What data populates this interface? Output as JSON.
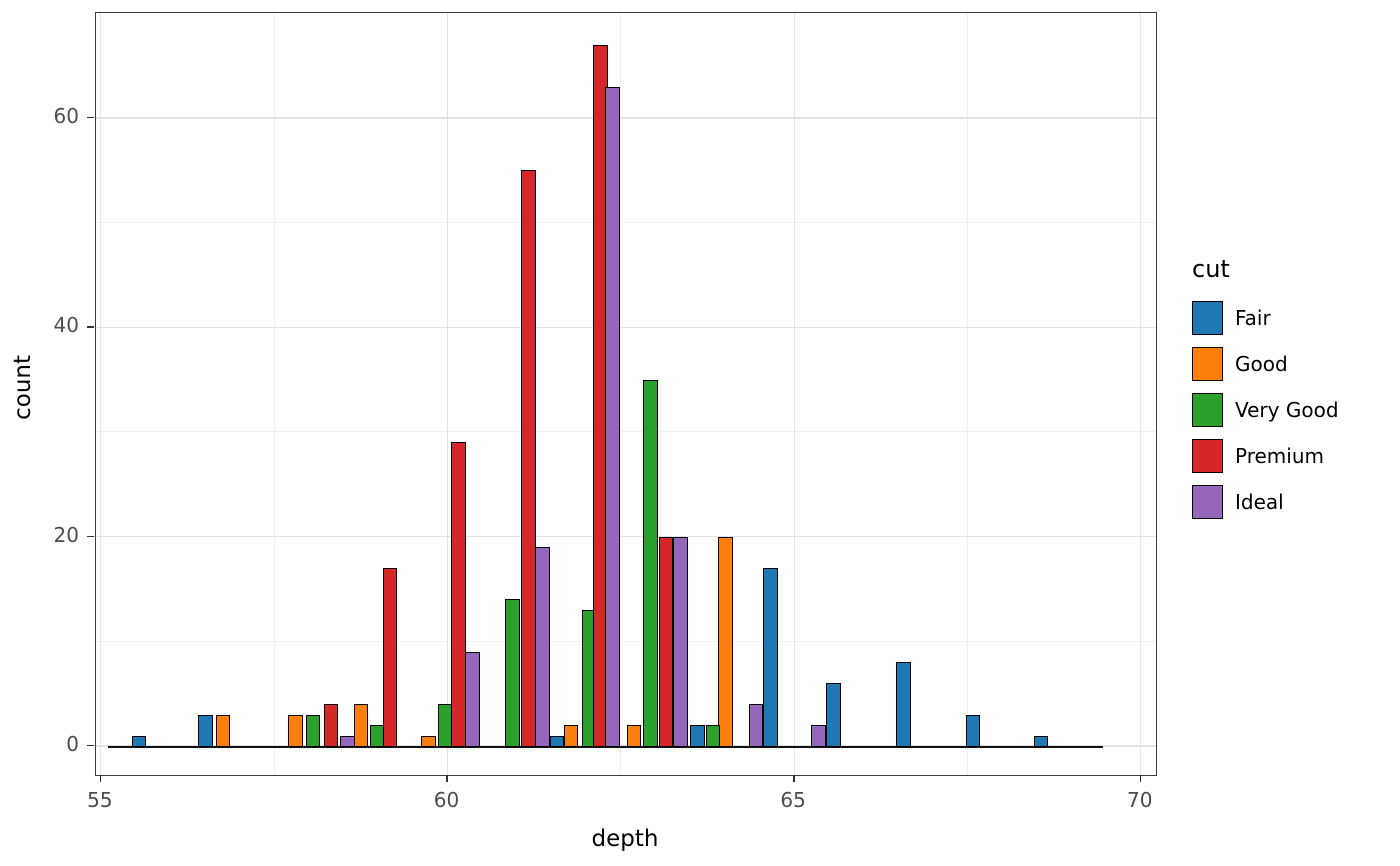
{
  "chart_data": {
    "type": "bar",
    "title": "",
    "xlabel": "depth",
    "ylabel": "count",
    "legend_title": "cut",
    "legend_position": "right",
    "grid": true,
    "xlim": [
      54.93,
      70.22
    ],
    "ylim": [
      0,
      70
    ],
    "x_ticks": [
      55,
      60,
      65,
      70
    ],
    "x_minor_ticks": [
      57.5,
      62.5,
      67.5
    ],
    "y_ticks": [
      0,
      20,
      40,
      60
    ],
    "y_minor_ticks": [
      10,
      30,
      50
    ],
    "bar_width": 0.21,
    "baseline": {
      "from": 55.1,
      "to": 69.45
    },
    "series": [
      {
        "name": "Fair",
        "color": "#1f77b4",
        "bars": [
          [
            55.55,
            1
          ],
          [
            56.51,
            3
          ],
          [
            61.58,
            1
          ],
          [
            63.61,
            2
          ],
          [
            64.66,
            17
          ],
          [
            65.57,
            6
          ],
          [
            66.58,
            8
          ],
          [
            67.58,
            3
          ],
          [
            68.56,
            1
          ]
        ]
      },
      {
        "name": "Good",
        "color": "#ff7f0e",
        "bars": [
          [
            56.76,
            3
          ],
          [
            57.81,
            3
          ],
          [
            58.75,
            4
          ],
          [
            59.73,
            1
          ],
          [
            61.78,
            2
          ],
          [
            62.69,
            2
          ],
          [
            64.01,
            20
          ]
        ]
      },
      {
        "name": "Very Good",
        "color": "#2ca02c",
        "bars": [
          [
            58.06,
            3
          ],
          [
            58.99,
            2
          ],
          [
            59.97,
            4
          ],
          [
            60.94,
            14
          ],
          [
            62.04,
            13
          ],
          [
            62.93,
            35
          ],
          [
            63.83,
            2
          ]
        ]
      },
      {
        "name": "Premium",
        "color": "#d62728",
        "bars": [
          [
            58.32,
            4
          ],
          [
            59.17,
            17
          ],
          [
            60.16,
            29
          ],
          [
            61.17,
            55
          ],
          [
            62.21,
            67
          ],
          [
            63.15,
            20
          ]
        ]
      },
      {
        "name": "Ideal",
        "color": "#9467bd",
        "bars": [
          [
            58.56,
            1
          ],
          [
            60.36,
            9
          ],
          [
            61.37,
            19
          ],
          [
            62.38,
            63
          ],
          [
            63.36,
            20
          ],
          [
            64.45,
            4
          ],
          [
            65.35,
            2
          ]
        ]
      }
    ]
  }
}
